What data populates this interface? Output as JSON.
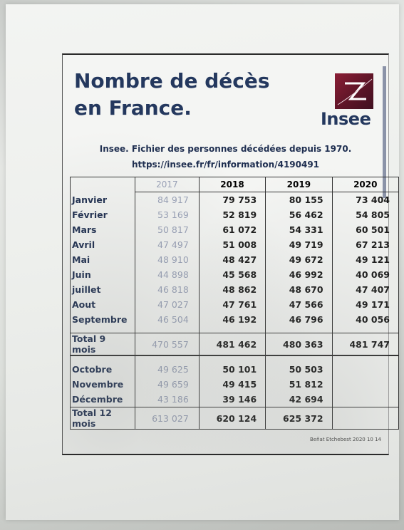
{
  "document": {
    "title_line1": "Nombre de décès",
    "title_line2": "en France.",
    "logo_text": "Insee",
    "source_line1": "Insee. Fichier des personnes décédées depuis 1970.",
    "source_line2": "https://insee.fr/fr/information/4190491",
    "credit": "Beñat Etchebest 2020 10 14"
  },
  "table": {
    "years": [
      "2017",
      "2018",
      "2019",
      "2020"
    ],
    "rows": [
      {
        "label": "Janvier",
        "values": [
          "84 917",
          "79 753",
          "80 155",
          "73 404"
        ]
      },
      {
        "label": "Février",
        "values": [
          "53 169",
          "52 819",
          "56 462",
          "54 805"
        ]
      },
      {
        "label": "Mars",
        "values": [
          "50 817",
          "61 072",
          "54 331",
          "60 501"
        ]
      },
      {
        "label": "Avril",
        "values": [
          "47 497",
          "51 008",
          "49 719",
          "67 213"
        ]
      },
      {
        "label": "Mai",
        "values": [
          "48 910",
          "48 427",
          "49 672",
          "49 121"
        ]
      },
      {
        "label": "Juin",
        "values": [
          "44 898",
          "45 568",
          "46 992",
          "40 069"
        ]
      },
      {
        "label": "juillet",
        "values": [
          "46 818",
          "48 862",
          "48 670",
          "47 407"
        ]
      },
      {
        "label": "Aout",
        "values": [
          "47 027",
          "47 761",
          "47 566",
          "49 171"
        ]
      },
      {
        "label": "Septembre",
        "values": [
          "46 504",
          "46 192",
          "46 796",
          "40 056"
        ]
      }
    ],
    "total9": {
      "label": "Total 9 mois",
      "values": [
        "470 557",
        "481 462",
        "480 363",
        "481 747"
      ]
    },
    "rows_q4": [
      {
        "label": "Octobre",
        "values": [
          "49 625",
          "50 101",
          "50 503",
          ""
        ]
      },
      {
        "label": "Novembre",
        "values": [
          "49 659",
          "49 415",
          "51 812",
          ""
        ]
      },
      {
        "label": "Décembre",
        "values": [
          "43 186",
          "39 146",
          "42 694",
          ""
        ]
      }
    ],
    "total12": {
      "label": "Total 12 mois",
      "values": [
        "613 027",
        "620 124",
        "625 372",
        ""
      ]
    }
  }
}
